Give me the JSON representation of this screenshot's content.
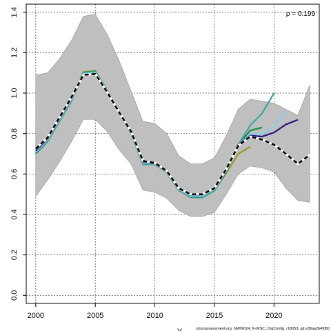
{
  "chart_data": {
    "type": "line",
    "title": "",
    "xlabel": "Y",
    "ylabel": "",
    "xlim": [
      1999.2,
      2023.8
    ],
    "ylim": [
      -0.04,
      1.44
    ],
    "x_ticks": [
      2000,
      2005,
      2010,
      2015,
      2020
    ],
    "y_ticks": [
      0.0,
      0.2,
      0.4,
      0.6,
      0.8,
      1.0,
      1.2,
      1.4
    ],
    "x_tick_labels": [
      "2000",
      "2005",
      "2010",
      "2015",
      "2020"
    ],
    "y_tick_labels": [
      "0.0",
      "0.2",
      "0.4",
      "0.6",
      "0.8",
      "1.0",
      "1.2",
      "1.4"
    ],
    "grid": true,
    "annotation": "ρ = 0.199",
    "footnote": "stockassessment.org, NWW024_N-WSC_OrgConfig, r18053, git:e38aa2b49f80",
    "band": {
      "x": [
        2000,
        2001,
        2002,
        2003,
        2004,
        2005,
        2006,
        2007,
        2008,
        2009,
        2010,
        2011,
        2012,
        2013,
        2014,
        2015,
        2016,
        2017,
        2018,
        2019,
        2020,
        2021,
        2022,
        2023
      ],
      "upper": [
        1.09,
        1.1,
        1.17,
        1.26,
        1.38,
        1.39,
        1.29,
        1.16,
        1.01,
        0.86,
        0.85,
        0.8,
        0.69,
        0.65,
        0.65,
        0.68,
        0.79,
        0.92,
        0.97,
        0.96,
        0.95,
        0.92,
        0.89,
        1.04
      ],
      "lower": [
        0.49,
        0.57,
        0.66,
        0.76,
        0.87,
        0.87,
        0.81,
        0.72,
        0.65,
        0.52,
        0.51,
        0.48,
        0.42,
        0.39,
        0.39,
        0.41,
        0.5,
        0.6,
        0.64,
        0.63,
        0.61,
        0.53,
        0.47,
        0.46
      ]
    },
    "series": [
      {
        "color": "#000000",
        "dashed": true,
        "x": [
          2000,
          2001,
          2002,
          2003,
          2004,
          2005,
          2006,
          2007,
          2008,
          2009,
          2010,
          2011,
          2012,
          2013,
          2014,
          2015,
          2016,
          2017,
          2018,
          2019,
          2020,
          2021,
          2022,
          2023
        ],
        "values": [
          0.725,
          0.78,
          0.88,
          0.98,
          1.09,
          1.095,
          1.005,
          0.905,
          0.81,
          0.665,
          0.655,
          0.615,
          0.53,
          0.5,
          0.5,
          0.53,
          0.625,
          0.74,
          0.785,
          0.77,
          0.745,
          0.7,
          0.65,
          0.695
        ]
      },
      {
        "color": "#2a1a7e",
        "dashed": false,
        "x": [
          2000,
          2001,
          2002,
          2003,
          2004,
          2005,
          2006,
          2007,
          2008,
          2009,
          2010,
          2011,
          2012,
          2013,
          2014,
          2015,
          2016,
          2017,
          2018,
          2019,
          2020,
          2021,
          2022
        ],
        "values": [
          0.715,
          0.775,
          0.875,
          0.975,
          1.09,
          1.095,
          1.005,
          0.905,
          0.81,
          0.66,
          0.652,
          0.612,
          0.528,
          0.497,
          0.497,
          0.528,
          0.623,
          0.745,
          0.79,
          0.785,
          0.805,
          0.845,
          0.868
        ]
      },
      {
        "color": "#87ceeb",
        "dashed": false,
        "x": [
          2000,
          2001,
          2002,
          2003,
          2004,
          2005,
          2006,
          2007,
          2008,
          2009,
          2010,
          2011,
          2012,
          2013,
          2014,
          2015,
          2016,
          2017,
          2018,
          2019,
          2020,
          2021
        ],
        "values": [
          0.71,
          0.77,
          0.87,
          0.97,
          1.095,
          1.1,
          1.008,
          0.905,
          0.808,
          0.655,
          0.65,
          0.61,
          0.525,
          0.492,
          0.492,
          0.525,
          0.62,
          0.745,
          0.795,
          0.8,
          0.835,
          0.915
        ]
      },
      {
        "color": "#3aa99f",
        "dashed": false,
        "x": [
          2000,
          2001,
          2002,
          2003,
          2004,
          2005,
          2006,
          2007,
          2008,
          2009,
          2010,
          2011,
          2012,
          2013,
          2014,
          2015,
          2016,
          2017,
          2018,
          2019,
          2020
        ],
        "values": [
          0.705,
          0.765,
          0.865,
          0.965,
          1.1,
          1.105,
          1.01,
          0.905,
          0.805,
          0.65,
          0.65,
          0.61,
          0.522,
          0.488,
          0.488,
          0.52,
          0.615,
          0.745,
          0.84,
          0.9,
          1.0
        ]
      },
      {
        "color": "#1f8f4a",
        "dashed": false,
        "x": [
          2000,
          2001,
          2002,
          2003,
          2004,
          2005,
          2006,
          2007,
          2008,
          2009,
          2010,
          2011,
          2012,
          2013,
          2014,
          2015,
          2016,
          2017,
          2018,
          2019
        ],
        "values": [
          0.7,
          0.762,
          0.862,
          0.962,
          1.102,
          1.108,
          1.01,
          0.903,
          0.803,
          0.648,
          0.648,
          0.608,
          0.52,
          0.485,
          0.485,
          0.518,
          0.612,
          0.745,
          0.815,
          0.83
        ]
      },
      {
        "color": "#9a9a2c",
        "dashed": false,
        "x": [
          2000,
          2001,
          2002,
          2003,
          2004,
          2005,
          2006,
          2007,
          2008,
          2009,
          2010,
          2011,
          2012,
          2013,
          2014,
          2015,
          2016,
          2017,
          2018
        ],
        "values": [
          0.705,
          0.765,
          0.865,
          0.968,
          1.105,
          1.11,
          1.012,
          0.905,
          0.805,
          0.65,
          0.65,
          0.61,
          0.522,
          0.487,
          0.487,
          0.518,
          0.605,
          0.7,
          0.735
        ]
      }
    ]
  }
}
